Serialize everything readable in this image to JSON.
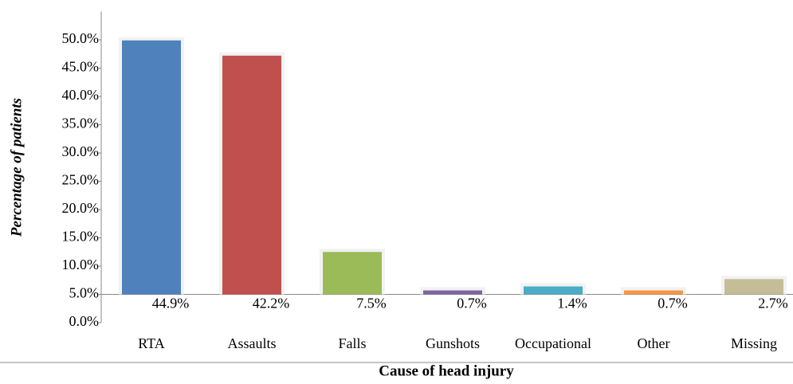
{
  "chart_data": {
    "type": "bar",
    "x_label": "Cause of head injury",
    "y_label": "Percentage of patients",
    "categories": [
      "RTA",
      "Assaults",
      "Falls",
      "Gunshots",
      "Occupational",
      "Other",
      "Missing"
    ],
    "values": [
      44.9,
      42.2,
      7.5,
      0.7,
      1.4,
      0.7,
      2.7
    ],
    "value_labels": [
      "44.9%",
      "42.2%",
      "7.5%",
      "0.7%",
      "1.4%",
      "0.7%",
      "2.7%"
    ],
    "colors": [
      "#4f81bd",
      "#c0504d",
      "#9bbb59",
      "#8064a2",
      "#4bacc6",
      "#f79646",
      "#c4bd97"
    ],
    "ylim": [
      0,
      55
    ],
    "yticks": [
      {
        "value": 0,
        "label": "0.0%"
      },
      {
        "value": 5,
        "label": "5.0%"
      },
      {
        "value": 10,
        "label": "10.0%"
      },
      {
        "value": 15,
        "label": "15.0%"
      },
      {
        "value": 20,
        "label": "20.0%"
      },
      {
        "value": 25,
        "label": "25.0%"
      },
      {
        "value": 30,
        "label": "30.0%"
      },
      {
        "value": 35,
        "label": "35.0%"
      },
      {
        "value": 40,
        "label": "40.0%"
      },
      {
        "value": 45,
        "label": "45.0%"
      },
      {
        "value": 50,
        "label": "50.0%"
      }
    ],
    "grid": false
  }
}
